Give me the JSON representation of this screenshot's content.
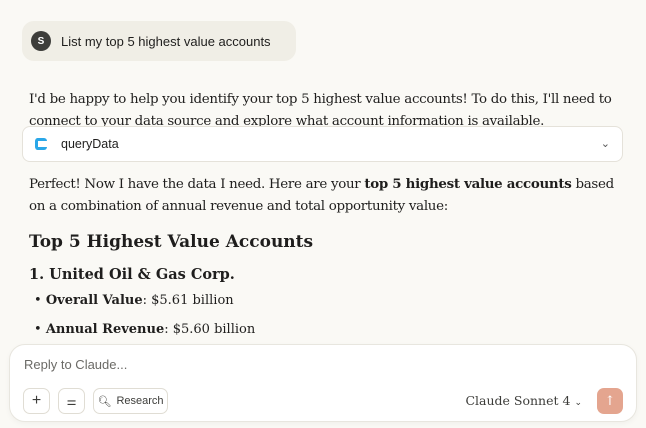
{
  "user_message": {
    "avatar": "S",
    "text": "List my top 5 highest value accounts"
  },
  "response": {
    "intro": "I'd be happy to help you identify your top 5 highest value accounts! To do this, I'll need to connect to your data source and explore what account information is available.",
    "tool": {
      "name": "queryData",
      "icon": "tool-icon"
    },
    "summary_pre": "Perfect! Now I have the data I need. Here are your ",
    "summary_bold": "top 5 highest value accounts",
    "summary_post": " based on a combination of annual revenue and total opportunity value:",
    "heading": "Top 5 Highest Value Accounts",
    "account_title": "1. United Oil & Gas Corp.",
    "bullets": [
      {
        "label": "Overall Value",
        "value": ": $5.61 billion"
      },
      {
        "label": "Annual Revenue",
        "value": ": $5.60 billion"
      }
    ]
  },
  "composer": {
    "placeholder": "Reply to Claude...",
    "research_label": "Research",
    "model": "Claude Sonnet 4"
  }
}
